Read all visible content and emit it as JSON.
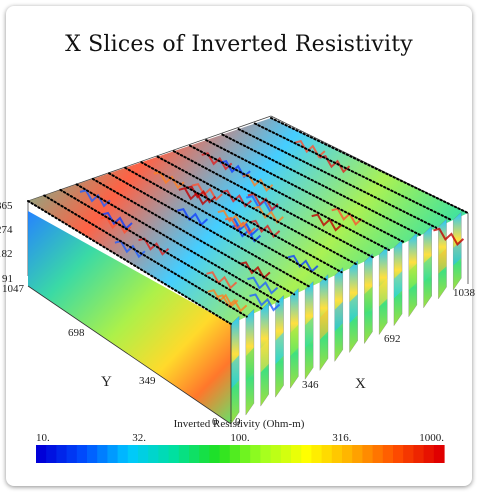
{
  "chart_data": {
    "type": "heatmap",
    "title": "X Slices of Inverted Resistivity",
    "axes": {
      "x": {
        "label": "X",
        "tick_labels": [
          "0",
          "346",
          "692",
          "1038"
        ]
      },
      "y": {
        "label": "Y",
        "tick_labels": [
          "0",
          "349",
          "698",
          "1047"
        ]
      },
      "z": {
        "label": "",
        "tick_labels": [
          "91",
          "182",
          "274",
          "365"
        ]
      }
    },
    "colorbar": {
      "label": "Inverted Resistivity (Ohm-m)",
      "scale": "log",
      "range": [
        10,
        1000
      ],
      "tick_labels": [
        "10.",
        "32.",
        "100.",
        "316.",
        "1000."
      ],
      "colors": [
        "#0000d8",
        "#0050ff",
        "#00c8ff",
        "#00e0a0",
        "#20e020",
        "#a0ff20",
        "#ffff00",
        "#ffb000",
        "#ff5000",
        "#e00000"
      ]
    },
    "slice_count": 16,
    "survey_lines": "black dotted lines on top surface"
  }
}
